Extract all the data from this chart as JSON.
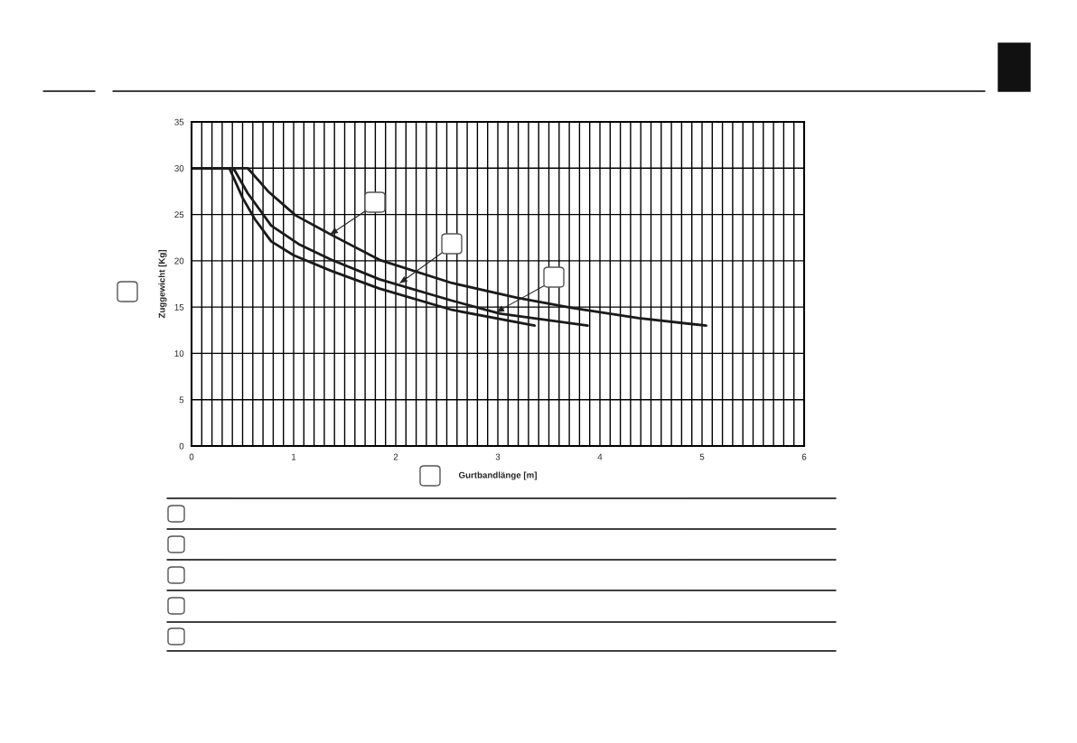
{
  "chart_data": {
    "type": "line",
    "xlabel": "Gurtbandlänge [m]",
    "ylabel": "Zuggewicht [Kg]",
    "xlim": [
      0,
      6
    ],
    "ylim": [
      0,
      35
    ],
    "xticks": [
      0,
      {
        "value": 0.1,
        "label": null
      },
      {
        "value": 0.2,
        "label": null
      },
      {
        "value": 0.3,
        "label": null
      },
      {
        "value": 0.4,
        "label": null
      },
      {
        "value": 0.5,
        "label": null
      },
      {
        "value": 0.6,
        "label": null
      },
      {
        "value": 0.7,
        "label": null
      },
      {
        "value": 0.8,
        "label": null
      },
      {
        "value": 0.9,
        "label": null
      },
      1,
      {
        "value": 1.1,
        "label": null
      },
      {
        "value": 1.2,
        "label": null
      },
      {
        "value": 1.3,
        "label": null
      },
      {
        "value": 1.4,
        "label": null
      },
      {
        "value": 1.5,
        "label": null
      },
      {
        "value": 1.6,
        "label": null
      },
      {
        "value": 1.7,
        "label": null
      },
      {
        "value": 1.8,
        "label": null
      },
      {
        "value": 1.9,
        "label": null
      },
      2,
      {
        "value": 2.1,
        "label": null
      },
      {
        "value": 2.2,
        "label": null
      },
      {
        "value": 2.3,
        "label": null
      },
      {
        "value": 2.4,
        "label": null
      },
      {
        "value": 2.5,
        "label": null
      },
      {
        "value": 2.6,
        "label": null
      },
      {
        "value": 2.7,
        "label": null
      },
      {
        "value": 2.8,
        "label": null
      },
      {
        "value": 2.9,
        "label": null
      },
      3,
      {
        "value": 3.1,
        "label": null
      },
      {
        "value": 3.2,
        "label": null
      },
      {
        "value": 3.3,
        "label": null
      },
      {
        "value": 3.4,
        "label": null
      },
      {
        "value": 3.5,
        "label": null
      },
      {
        "value": 3.6,
        "label": null
      },
      {
        "value": 3.7,
        "label": null
      },
      {
        "value": 3.8,
        "label": null
      },
      {
        "value": 3.9,
        "label": null
      },
      4,
      {
        "value": 4.1,
        "label": null
      },
      {
        "value": 4.2,
        "label": null
      },
      {
        "value": 4.3,
        "label": null
      },
      {
        "value": 4.4,
        "label": null
      },
      {
        "value": 4.5,
        "label": null
      },
      {
        "value": 4.6,
        "label": null
      },
      {
        "value": 4.7,
        "label": null
      },
      {
        "value": 4.8,
        "label": null
      },
      {
        "value": 4.9,
        "label": null
      },
      5,
      {
        "value": 5.1,
        "label": null
      },
      {
        "value": 5.2,
        "label": null
      },
      {
        "value": 5.3,
        "label": null
      },
      {
        "value": 5.4,
        "label": null
      },
      {
        "value": 5.5,
        "label": null
      },
      {
        "value": 5.6,
        "label": null
      },
      {
        "value": 5.7,
        "label": null
      },
      {
        "value": 5.8,
        "label": null
      },
      {
        "value": 5.9,
        "label": null
      },
      6
    ],
    "yticks": [
      0,
      5,
      10,
      15,
      20,
      25,
      30,
      35
    ],
    "grid": true,
    "legend": false,
    "marker": "none",
    "line_style": "solid",
    "series": [
      {
        "color": "#1a1a1a",
        "x": [
          0,
          0.55,
          0.75,
          1.02,
          1.37,
          1.84,
          2.55,
          3.19,
          3.73,
          4.38,
          5.04
        ],
        "values": [
          30,
          30,
          27.5,
          24.9,
          22.8,
          20.1,
          17.6,
          16.0,
          14.9,
          13.8,
          13.0
        ]
      },
      {
        "color": "#1a1a1a",
        "x": [
          0,
          0.41,
          0.55,
          0.78,
          1.05,
          1.37,
          1.84,
          2.55,
          3.02,
          3.88
        ],
        "values": [
          30,
          30,
          27.3,
          23.8,
          21.8,
          20.1,
          18.0,
          15.7,
          14.3,
          13.0
        ]
      },
      {
        "color": "#1a1a1a",
        "x": [
          0,
          0.37,
          0.5,
          0.62,
          0.78,
          1.0,
          1.37,
          1.84,
          2.55,
          3.36
        ],
        "values": [
          30,
          30,
          26.8,
          24.5,
          22.1,
          20.6,
          18.9,
          17.0,
          14.7,
          13.0
        ]
      }
    ]
  }
}
